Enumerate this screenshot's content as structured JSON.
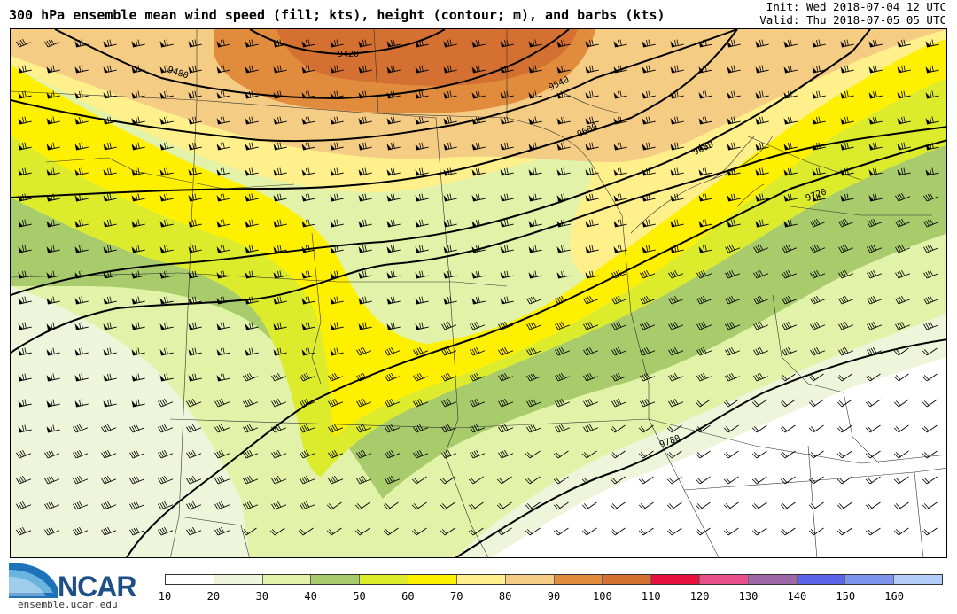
{
  "title": "300 hPa ensemble mean wind speed (fill; kts), height (contour; m), and barbs (kts)",
  "init_label": "Init: Wed 2018-07-04 12 UTC",
  "valid_label": "Valid: Thu 2018-07-05 05 UTC",
  "logo_text": "NCAR",
  "website": "ensemble.ucar.edu",
  "colorbar": {
    "units": "kts",
    "labels": [
      "10",
      "20",
      "30",
      "40",
      "50",
      "60",
      "70",
      "80",
      "90",
      "100",
      "110",
      "120",
      "130",
      "140",
      "150",
      "160"
    ],
    "colors": [
      "#ffffff",
      "#eef5da",
      "#e2f2a8",
      "#a8cc6c",
      "#dcec2c",
      "#fff000",
      "#fff08c",
      "#f5cc84",
      "#e08c3c",
      "#d47032",
      "#e8103c",
      "#e8508c",
      "#9e68a8",
      "#5c64e8",
      "#7c94ec",
      "#b4ccf8"
    ]
  },
  "contours": {
    "units": "m",
    "labels": [
      "9420",
      "9480",
      "9540",
      "9600",
      "9660",
      "9720",
      "9780"
    ]
  }
}
